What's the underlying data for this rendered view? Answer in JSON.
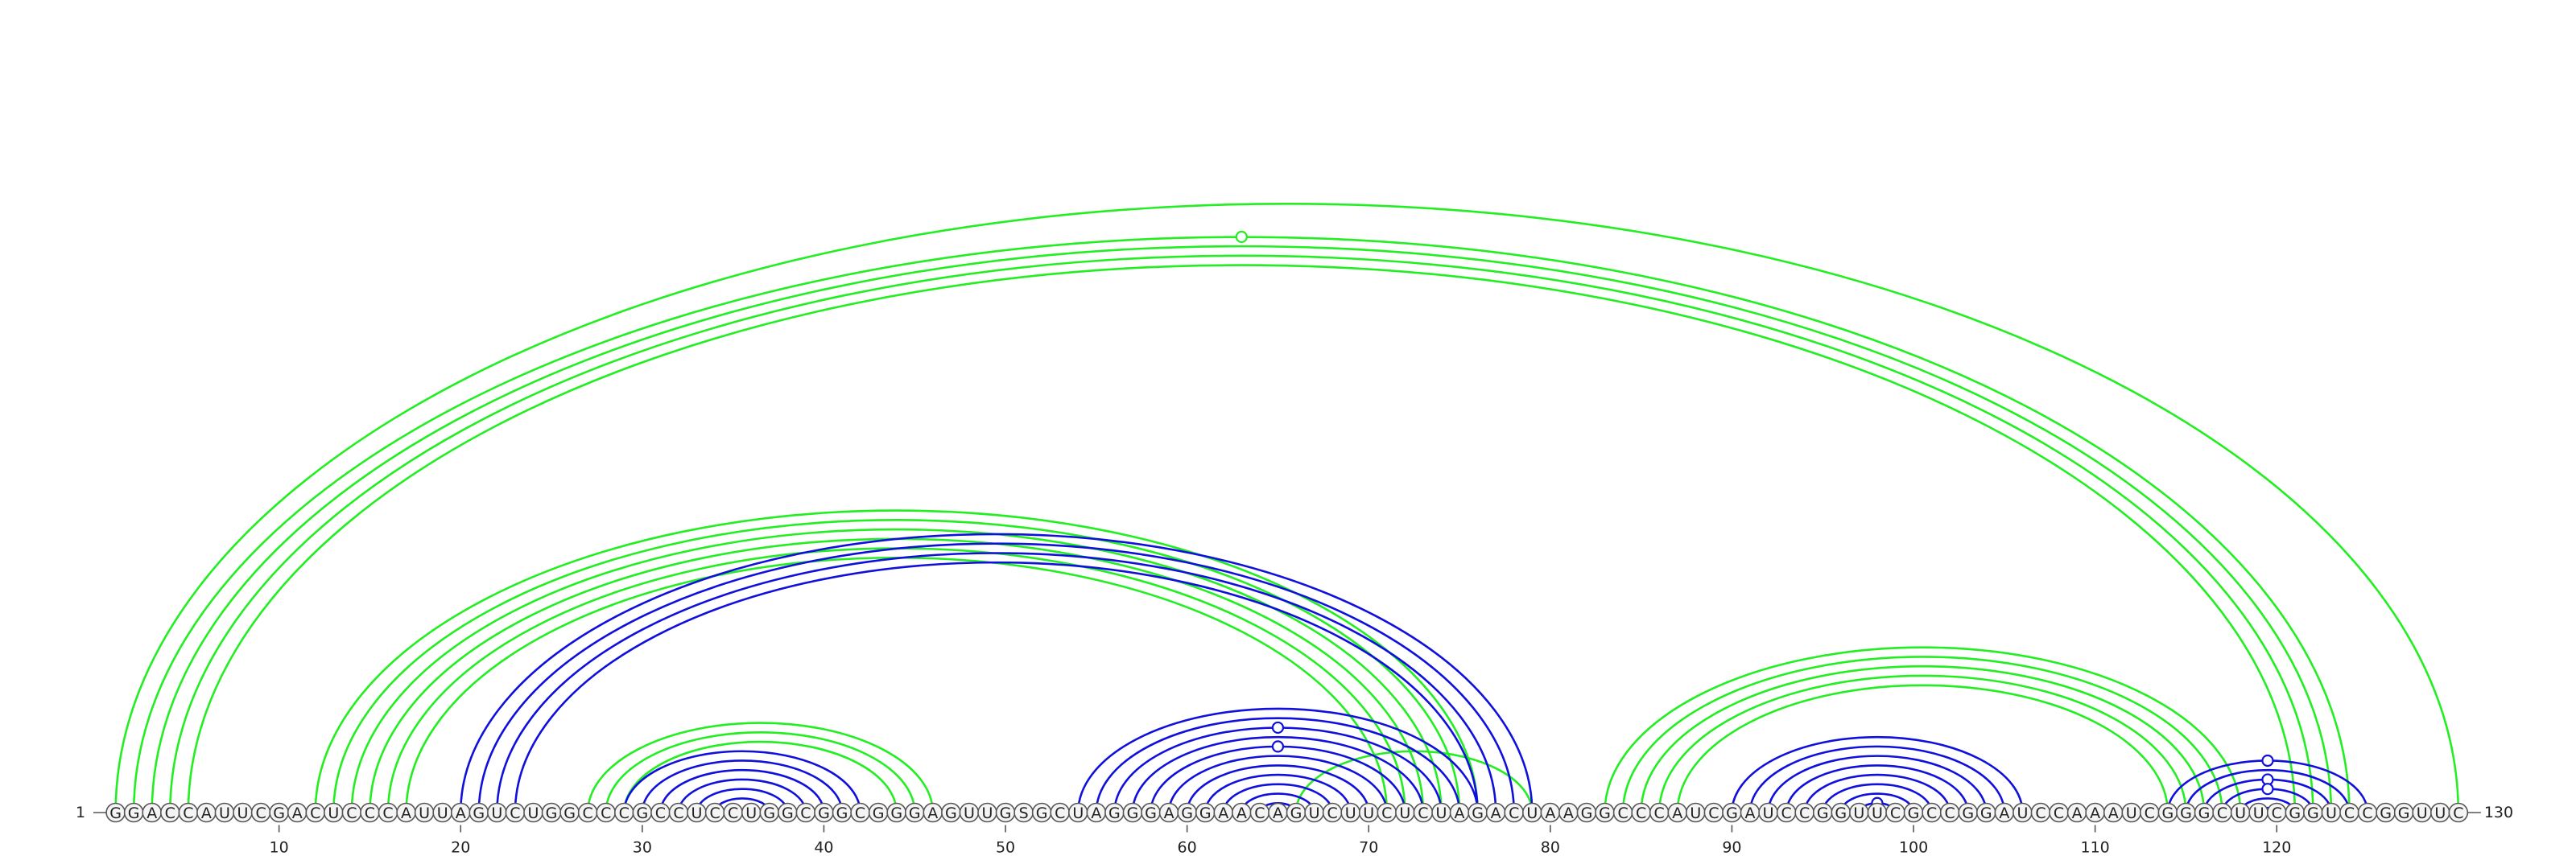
{
  "sequence": "GGACCAUUCGACUCCCAUUAGUCUGGCCCGCCUCCUGGCGGCGGGAGUUGSGCUAGGGAGGAACAGUCUUCUCUAGACUAAGGCCCAUCGAUCCGGUUCGCCGGAUCCAAAUCGGGCUUCGGUCCGGUUC",
  "length_label_start": "1",
  "length_label_end": "130",
  "ticks": [
    {
      "pos": 10,
      "label": "10"
    },
    {
      "pos": 20,
      "label": "20"
    },
    {
      "pos": 30,
      "label": "30"
    },
    {
      "pos": 40,
      "label": "40"
    },
    {
      "pos": 50,
      "label": "50"
    },
    {
      "pos": 60,
      "label": "60"
    },
    {
      "pos": 70,
      "label": "70"
    },
    {
      "pos": 80,
      "label": "80"
    },
    {
      "pos": 90,
      "label": "90"
    },
    {
      "pos": 100,
      "label": "100"
    },
    {
      "pos": 110,
      "label": "110"
    },
    {
      "pos": 120,
      "label": "120"
    }
  ],
  "colors": {
    "green_arc": "#22ee22",
    "blue_arc": "#1010dd",
    "backbone": "#555555"
  },
  "green_pairs": [
    [
      1,
      130
    ],
    [
      2,
      124
    ],
    [
      3,
      123
    ],
    [
      4,
      122
    ],
    [
      5,
      121
    ],
    [
      12,
      76
    ],
    [
      13,
      75
    ],
    [
      14,
      74
    ],
    [
      15,
      73
    ],
    [
      16,
      72
    ],
    [
      17,
      71
    ],
    [
      27,
      46
    ],
    [
      28,
      45
    ],
    [
      29,
      44
    ],
    [
      83,
      118
    ],
    [
      84,
      117
    ],
    [
      85,
      116
    ],
    [
      86,
      115
    ],
    [
      87,
      114
    ],
    [
      66,
      79
    ]
  ],
  "blue_pairs": [
    [
      20,
      79
    ],
    [
      21,
      78
    ],
    [
      22,
      77
    ],
    [
      23,
      76
    ],
    [
      29,
      42
    ],
    [
      30,
      41
    ],
    [
      31,
      40
    ],
    [
      32,
      39
    ],
    [
      33,
      38
    ],
    [
      34,
      37
    ],
    [
      54,
      76
    ],
    [
      55,
      75
    ],
    [
      56,
      74
    ],
    [
      57,
      73
    ],
    [
      58,
      72
    ],
    [
      59,
      71
    ],
    [
      60,
      70
    ],
    [
      61,
      69
    ],
    [
      62,
      68
    ],
    [
      63,
      67
    ],
    [
      64,
      66
    ],
    [
      90,
      106
    ],
    [
      91,
      105
    ],
    [
      92,
      104
    ],
    [
      93,
      103
    ],
    [
      94,
      102
    ],
    [
      95,
      101
    ],
    [
      96,
      100
    ],
    [
      97,
      99
    ],
    [
      114,
      125
    ],
    [
      115,
      124
    ],
    [
      116,
      123
    ],
    [
      117,
      122
    ],
    [
      118,
      121
    ],
    [
      119,
      120
    ]
  ],
  "markers": [
    {
      "pair": [
        2,
        124
      ],
      "color": "green"
    },
    {
      "pair": [
        56,
        74
      ],
      "color": "blue"
    },
    {
      "pair": [
        58,
        72
      ],
      "color": "blue"
    },
    {
      "pair": [
        97,
        99
      ],
      "color": "blue"
    },
    {
      "pair": [
        114,
        125
      ],
      "color": "blue"
    },
    {
      "pair": [
        116,
        123
      ],
      "color": "blue"
    },
    {
      "pair": [
        117,
        122
      ],
      "color": "blue"
    }
  ]
}
